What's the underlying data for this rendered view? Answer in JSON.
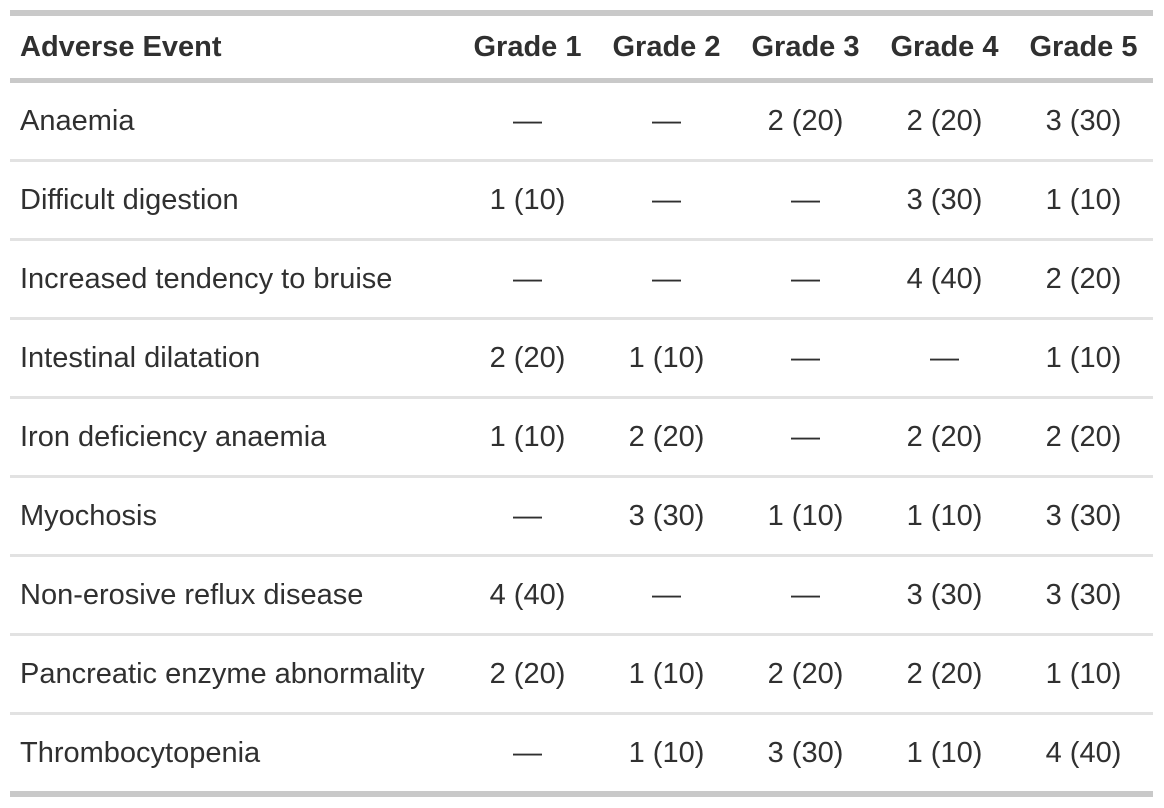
{
  "table": {
    "name": "adverse-events-by-grade",
    "columns": [
      "Adverse Event",
      "Grade 1",
      "Grade 2",
      "Grade 3",
      "Grade 4",
      "Grade 5"
    ],
    "empty_marker": "—",
    "rows": [
      {
        "event": "Anaemia",
        "grades": [
          "—",
          "—",
          "2 (20)",
          "2 (20)",
          "3 (30)"
        ]
      },
      {
        "event": "Difficult digestion",
        "grades": [
          "1 (10)",
          "—",
          "—",
          "3 (30)",
          "1 (10)"
        ]
      },
      {
        "event": "Increased tendency to bruise",
        "grades": [
          "—",
          "—",
          "—",
          "4 (40)",
          "2 (20)"
        ]
      },
      {
        "event": "Intestinal dilatation",
        "grades": [
          "2 (20)",
          "1 (10)",
          "—",
          "—",
          "1 (10)"
        ]
      },
      {
        "event": "Iron deficiency anaemia",
        "grades": [
          "1 (10)",
          "2 (20)",
          "—",
          "2 (20)",
          "2 (20)"
        ]
      },
      {
        "event": "Myochosis",
        "grades": [
          "—",
          "3 (30)",
          "1 (10)",
          "1 (10)",
          "3 (30)"
        ]
      },
      {
        "event": "Non-erosive reflux disease",
        "grades": [
          "4 (40)",
          "—",
          "—",
          "3 (30)",
          "3 (30)"
        ]
      },
      {
        "event": "Pancreatic enzyme abnormality",
        "grades": [
          "2 (20)",
          "1 (10)",
          "2 (20)",
          "2 (20)",
          "1 (10)"
        ]
      },
      {
        "event": "Thrombocytopenia",
        "grades": [
          "—",
          "1 (10)",
          "3 (30)",
          "1 (10)",
          "4 (40)"
        ]
      }
    ],
    "colors": {
      "text": "#303030",
      "heavy_border": "#c9c9c9",
      "light_border": "#e2e2e2",
      "background": "#ffffff"
    }
  }
}
